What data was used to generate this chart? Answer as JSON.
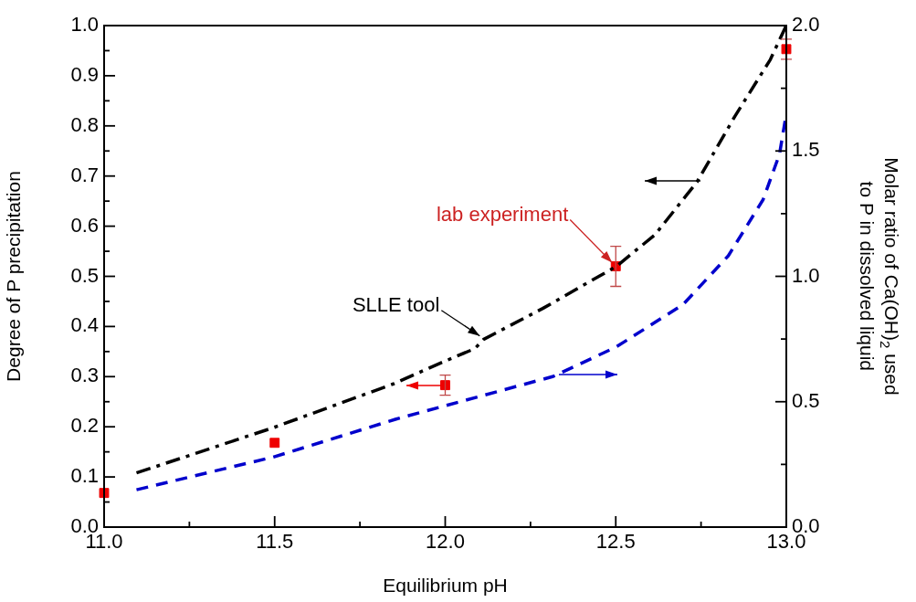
{
  "chart_data": {
    "type": "line",
    "xlabel": "Equilibrium pH",
    "ylabel": "Degree of P precipitation",
    "y2label": "Molar ratio of Ca(OH)$_{2}$ used\nto P in dissolved liquid",
    "xlim": [
      11,
      13
    ],
    "xticks": [
      {
        "value": 11,
        "label": "11.0"
      },
      {
        "value": 11.25,
        "label": null
      },
      {
        "value": 11.5,
        "label": "11.5"
      },
      {
        "value": 11.75,
        "label": null
      },
      {
        "value": 12,
        "label": "12.0"
      },
      {
        "value": 12.25,
        "label": null
      },
      {
        "value": 12.5,
        "label": "12.5"
      },
      {
        "value": 12.75,
        "label": null
      },
      {
        "value": 13,
        "label": "13.0"
      }
    ],
    "ylim": [
      0,
      1
    ],
    "yticks": [
      {
        "value": 0,
        "label": "0.0"
      },
      {
        "value": 0.05,
        "label": null
      },
      {
        "value": 0.1,
        "label": "0.1"
      },
      {
        "value": 0.15,
        "label": null
      },
      {
        "value": 0.2,
        "label": "0.2"
      },
      {
        "value": 0.25,
        "label": null
      },
      {
        "value": 0.3,
        "label": "0.3"
      },
      {
        "value": 0.35,
        "label": null
      },
      {
        "value": 0.4,
        "label": "0.4"
      },
      {
        "value": 0.45,
        "label": null
      },
      {
        "value": 0.5,
        "label": "0.5"
      },
      {
        "value": 0.55,
        "label": null
      },
      {
        "value": 0.6,
        "label": "0.6"
      },
      {
        "value": 0.65,
        "label": null
      },
      {
        "value": 0.7,
        "label": "0.7"
      },
      {
        "value": 0.75,
        "label": null
      },
      {
        "value": 0.8,
        "label": "0.8"
      },
      {
        "value": 0.85,
        "label": null
      },
      {
        "value": 0.9,
        "label": "0.9"
      },
      {
        "value": 0.95,
        "label": null
      },
      {
        "value": 1,
        "label": "1.0"
      }
    ],
    "y2lim": [
      0,
      2
    ],
    "y2ticks": [
      {
        "value": 0,
        "label": "0.0"
      },
      {
        "value": 0.25,
        "label": null
      },
      {
        "value": 0.5,
        "label": "0.5"
      },
      {
        "value": 0.75,
        "label": null
      },
      {
        "value": 1,
        "label": "1.0"
      },
      {
        "value": 1.25,
        "label": null
      },
      {
        "value": 1.5,
        "label": "1.5"
      },
      {
        "value": 1.75,
        "label": null
      },
      {
        "value": 2,
        "label": "2.0"
      }
    ],
    "series": [
      {
        "color": "#000000",
        "line_style": "dashdot",
        "marker": "none",
        "x": [
          11.095,
          11.495,
          11.85,
          11.979,
          12.087,
          12.112,
          12.286,
          12.502,
          12.615,
          12.738,
          12.85,
          12.953,
          12.999
        ],
        "values": [
          0.108,
          0.198,
          0.286,
          0.325,
          0.356,
          0.374,
          0.436,
          0.52,
          0.583,
          0.688,
          0.82,
          0.932,
          0.999
        ]
      },
      {
        "axis": "y2",
        "color": "#0000cc",
        "line_style": "dashed",
        "marker": "none",
        "x": [
          11.095,
          11.495,
          11.854,
          12.317,
          12.502,
          12.697,
          12.83,
          12.932,
          12.98,
          12.999
        ],
        "values": [
          0.149,
          0.279,
          0.43,
          0.601,
          0.719,
          0.887,
          1.082,
          1.306,
          1.487,
          1.641
        ]
      },
      {
        "type": "scatter",
        "color": "#ee0000",
        "marker": "square",
        "x": [
          11,
          11.5,
          12,
          12.5,
          13
        ],
        "values": [
          0.068,
          0.168,
          0.283,
          0.52,
          0.953
        ],
        "errors": [
          null,
          null,
          0.02,
          0.04,
          0.02
        ]
      }
    ],
    "annotations": [
      {
        "text": "lab experiment",
        "x": 12.5,
        "y": 0.52
      },
      {
        "text": "SLLE tool",
        "x": 12.112,
        "y": 0.374
      }
    ],
    "legend": false,
    "grid": false
  }
}
